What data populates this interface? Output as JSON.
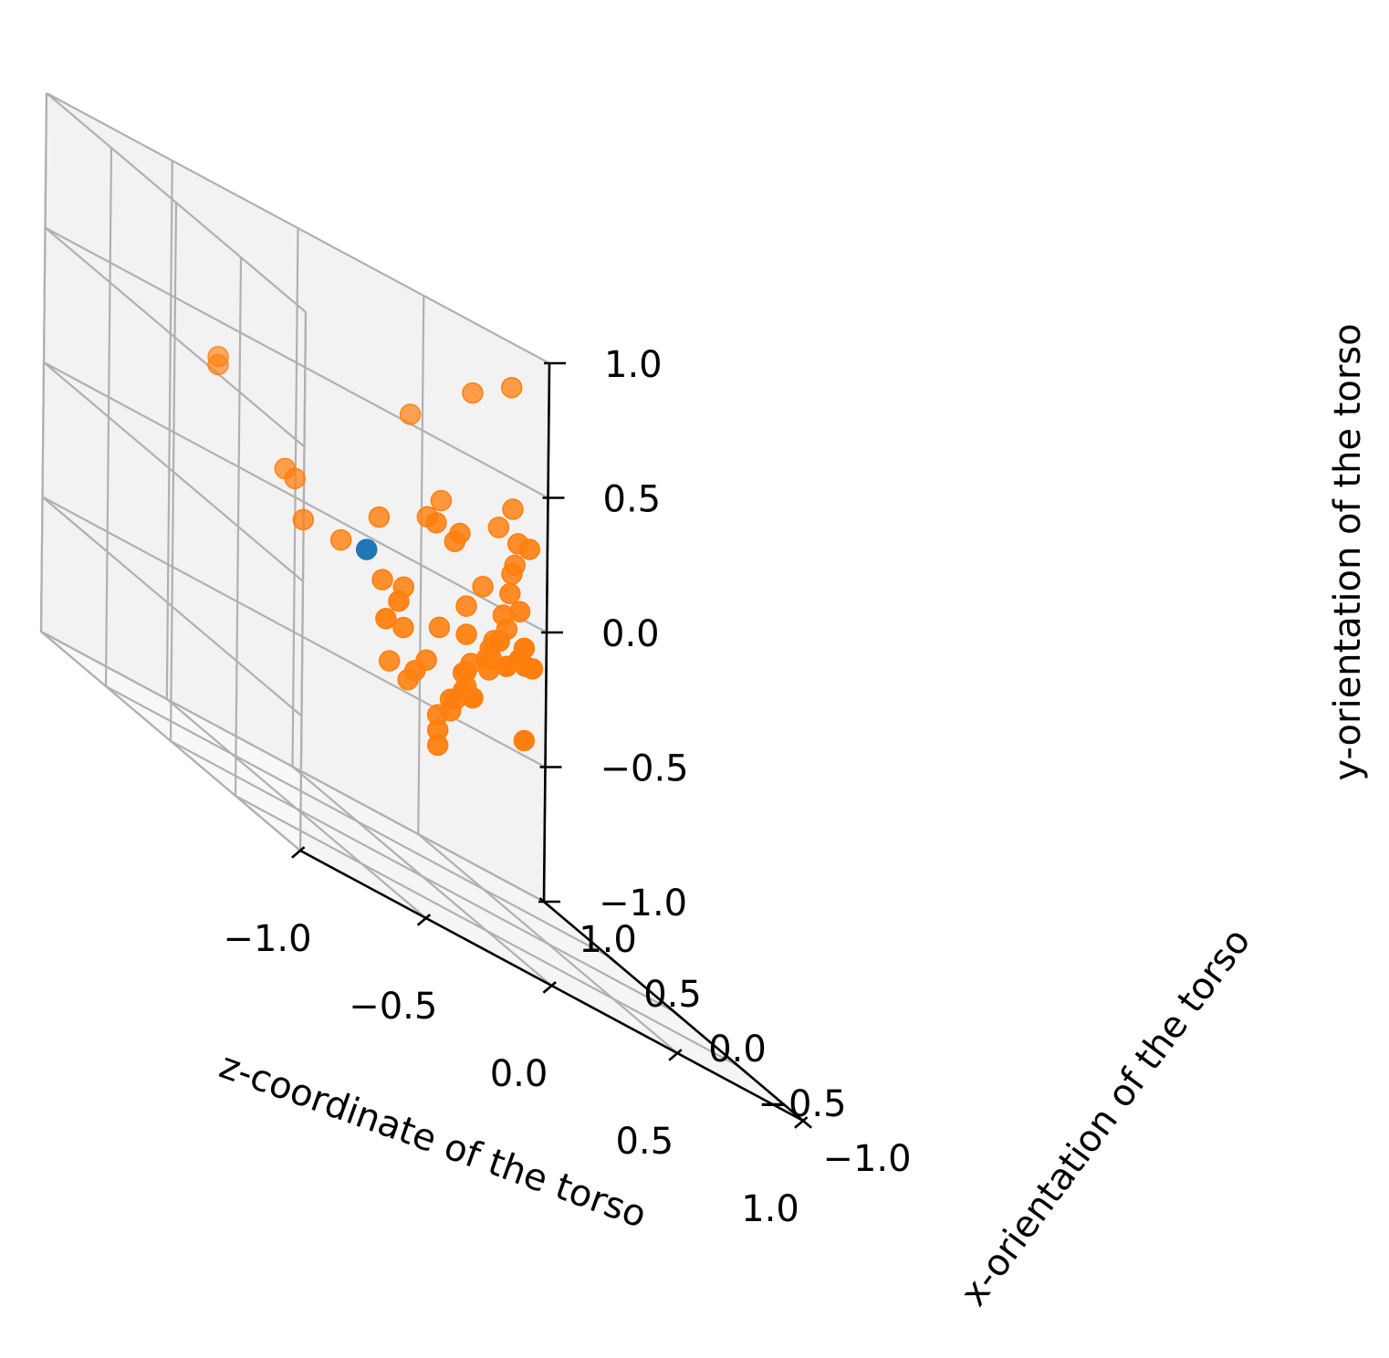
{
  "chart_data": {
    "type": "scatter3d",
    "axes": {
      "x": {
        "label": "z-coordinate of the torso",
        "range": [
          -1.0,
          1.0
        ],
        "ticks": [
          "−1.0",
          "−0.5",
          "0.0",
          "0.5",
          "1.0"
        ]
      },
      "y": {
        "label": "x-orientation of the torso",
        "range": [
          -1.0,
          1.0
        ],
        "ticks": [
          "−1.0",
          "−0.5",
          "0.0",
          "0.5",
          "1.0"
        ]
      },
      "z": {
        "label": "y-orientation of the torso",
        "range": [
          -1.0,
          1.0
        ],
        "ticks": [
          "−1.0",
          "−0.5",
          "0.0",
          "0.5",
          "1.0"
        ]
      }
    },
    "grid": true,
    "colors": {
      "series_1": "#1f77b4",
      "series_2": "#ff7f0e",
      "pane_left": "#f8f8f8",
      "pane_back": "#f2f2f2",
      "pane_floor": "#f5f5f5",
      "grid": "#b0b0b0"
    },
    "series": [
      {
        "color": "#1f77b4",
        "points": [
          [
            0.0,
            0.45,
            0.03
          ]
        ]
      },
      {
        "color": "#ff7f0e",
        "points": [
          [
            -0.6,
            0.44,
            0.42
          ],
          [
            -0.6,
            0.44,
            0.45
          ],
          [
            -0.3,
            0.5,
            0.16
          ],
          [
            -0.25,
            0.52,
            0.14
          ],
          [
            -0.2,
            0.55,
            0.0
          ],
          [
            -0.05,
            0.55,
            0.0
          ],
          [
            0.1,
            0.52,
            -0.06
          ],
          [
            0.2,
            0.55,
            -0.05
          ],
          [
            0.0,
            0.2,
            -0.06
          ],
          [
            -0.05,
            0.2,
            -0.15
          ],
          [
            0.1,
            0.55,
            0.16
          ],
          [
            0.4,
            0.55,
            0.22
          ],
          [
            0.42,
            0.55,
            0.26
          ],
          [
            0.3,
            0.5,
            0.26
          ],
          [
            0.42,
            0.8,
            0.22
          ],
          [
            0.5,
            0.85,
            0.3
          ],
          [
            0.3,
            -0.05,
            -0.05
          ],
          [
            0.35,
            -0.05,
            0.0
          ],
          [
            0.4,
            0.0,
            -0.02
          ],
          [
            0.48,
            0.1,
            -0.03
          ],
          [
            0.55,
            0.3,
            0.0
          ],
          [
            0.8,
            0.9,
            0.85
          ],
          [
            0.62,
            0.85,
            0.76
          ],
          [
            0.4,
            0.9,
            0.55
          ],
          [
            0.8,
            0.75,
            0.31
          ],
          [
            0.78,
            0.8,
            0.3
          ],
          [
            0.78,
            0.95,
            0.3
          ],
          [
            0.82,
            0.9,
            0.2
          ],
          [
            0.75,
            0.8,
            0.1
          ],
          [
            0.8,
            0.82,
            0.05
          ],
          [
            0.75,
            0.85,
            0.0
          ],
          [
            0.78,
            0.88,
            -0.05
          ],
          [
            0.72,
            0.82,
            -0.1
          ],
          [
            0.74,
            0.9,
            -0.12
          ],
          [
            0.7,
            0.85,
            -0.15
          ],
          [
            0.68,
            0.8,
            -0.18
          ],
          [
            0.7,
            0.88,
            -0.2
          ],
          [
            0.65,
            0.9,
            -0.25
          ],
          [
            0.66,
            0.78,
            -0.22
          ],
          [
            0.6,
            0.84,
            -0.28
          ],
          [
            0.62,
            0.9,
            -0.3
          ],
          [
            0.58,
            0.8,
            -0.33
          ],
          [
            0.6,
            0.86,
            -0.36
          ],
          [
            0.55,
            0.82,
            -0.4
          ],
          [
            0.56,
            0.88,
            -0.42
          ],
          [
            0.52,
            0.8,
            -0.45
          ],
          [
            0.5,
            0.86,
            -0.5
          ],
          [
            0.48,
            0.82,
            -0.55
          ],
          [
            0.46,
            0.78,
            -0.6
          ],
          [
            0.42,
            0.7,
            -0.15
          ],
          [
            0.38,
            0.72,
            -0.3
          ],
          [
            0.3,
            0.65,
            -0.35
          ],
          [
            0.82,
            0.92,
            0.4
          ],
          [
            0.85,
            0.98,
            0.15
          ],
          [
            0.76,
            0.7,
            -0.4
          ],
          [
            0.45,
            0.55,
            -0.1
          ],
          [
            0.4,
            0.4,
            -0.3
          ],
          [
            0.2,
            0.55,
            -0.2
          ],
          [
            0.25,
            0.75,
            -0.38
          ],
          [
            0.35,
            0.8,
            -0.42
          ],
          [
            0.64,
            0.92,
            -0.05
          ],
          [
            0.72,
            0.95,
            0.05
          ]
        ]
      }
    ]
  }
}
